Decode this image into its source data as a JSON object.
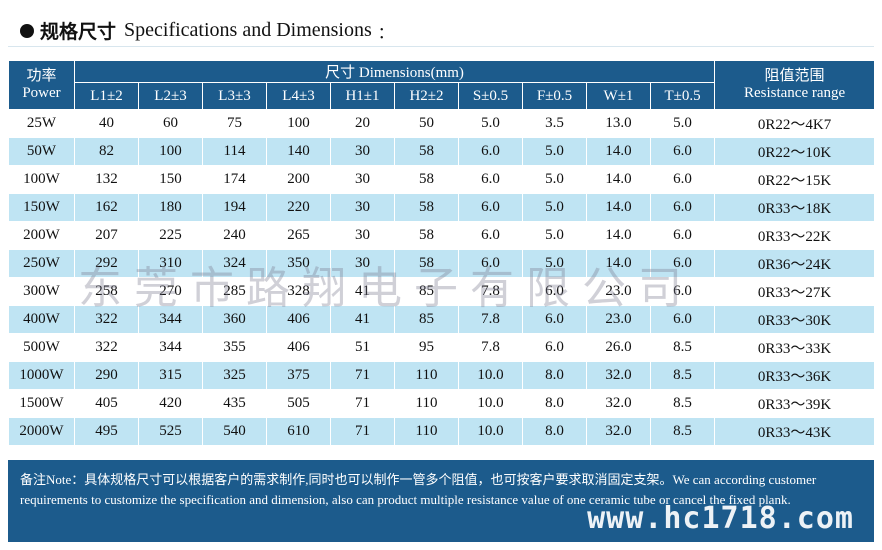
{
  "header": {
    "title_cn": "规格尺寸",
    "title_en": "Specifications and Dimensions",
    "colon": "："
  },
  "table": {
    "power_label_cn": "功率",
    "power_label_en": "Power",
    "dimensions_label": "尺寸 Dimensions(mm)",
    "resistance_label_cn": "阻值范围",
    "resistance_label_en": "Resistance range",
    "columns": [
      "L1±2",
      "L2±3",
      "L3±3",
      "L4±3",
      "H1±1",
      "H2±2",
      "S±0.5",
      "F±0.5",
      "W±1",
      "T±0.5"
    ],
    "rows": [
      {
        "power": "25W",
        "dims": [
          "40",
          "60",
          "75",
          "100",
          "20",
          "50",
          "5.0",
          "3.5",
          "13.0",
          "5.0"
        ],
        "range": "0R22～4K7"
      },
      {
        "power": "50W",
        "dims": [
          "82",
          "100",
          "114",
          "140",
          "30",
          "58",
          "6.0",
          "5.0",
          "14.0",
          "6.0"
        ],
        "range": "0R22～10K"
      },
      {
        "power": "100W",
        "dims": [
          "132",
          "150",
          "174",
          "200",
          "30",
          "58",
          "6.0",
          "5.0",
          "14.0",
          "6.0"
        ],
        "range": "0R22～15K"
      },
      {
        "power": "150W",
        "dims": [
          "162",
          "180",
          "194",
          "220",
          "30",
          "58",
          "6.0",
          "5.0",
          "14.0",
          "6.0"
        ],
        "range": "0R33～18K"
      },
      {
        "power": "200W",
        "dims": [
          "207",
          "225",
          "240",
          "265",
          "30",
          "58",
          "6.0",
          "5.0",
          "14.0",
          "6.0"
        ],
        "range": "0R33～22K"
      },
      {
        "power": "250W",
        "dims": [
          "292",
          "310",
          "324",
          "350",
          "30",
          "58",
          "6.0",
          "5.0",
          "14.0",
          "6.0"
        ],
        "range": "0R36～24K"
      },
      {
        "power": "300W",
        "dims": [
          "258",
          "270",
          "285",
          "328",
          "41",
          "85",
          "7.8",
          "6.0",
          "23.0",
          "6.0"
        ],
        "range": "0R33～27K"
      },
      {
        "power": "400W",
        "dims": [
          "322",
          "344",
          "360",
          "406",
          "41",
          "85",
          "7.8",
          "6.0",
          "23.0",
          "6.0"
        ],
        "range": "0R33～30K"
      },
      {
        "power": "500W",
        "dims": [
          "322",
          "344",
          "355",
          "406",
          "51",
          "95",
          "7.8",
          "6.0",
          "26.0",
          "8.5"
        ],
        "range": "0R33～33K"
      },
      {
        "power": "1000W",
        "dims": [
          "290",
          "315",
          "325",
          "375",
          "71",
          "110",
          "10.0",
          "8.0",
          "32.0",
          "8.5"
        ],
        "range": "0R33～36K"
      },
      {
        "power": "1500W",
        "dims": [
          "405",
          "420",
          "435",
          "505",
          "71",
          "110",
          "10.0",
          "8.0",
          "32.0",
          "8.5"
        ],
        "range": "0R33～39K"
      },
      {
        "power": "2000W",
        "dims": [
          "495",
          "525",
          "540",
          "610",
          "71",
          "110",
          "10.0",
          "8.0",
          "32.0",
          "8.5"
        ],
        "range": "0R33～43K"
      }
    ]
  },
  "watermark_text": "东莞市路翔电子有限公司",
  "note": {
    "text": "备注Note：具体规格尺寸可以根据客户的需求制作,同时也可以制作一管多个阻值，也可按客户要求取消固定支架。We can according customer requirements to customize the specification and dimension, also can product multiple resistance value of one ceramic tube or cancel the fixed plank.",
    "site": "www.hc1718.com"
  },
  "colors": {
    "header_blue": "#1c5b8c",
    "row_stripe": "#bfe4f3"
  }
}
